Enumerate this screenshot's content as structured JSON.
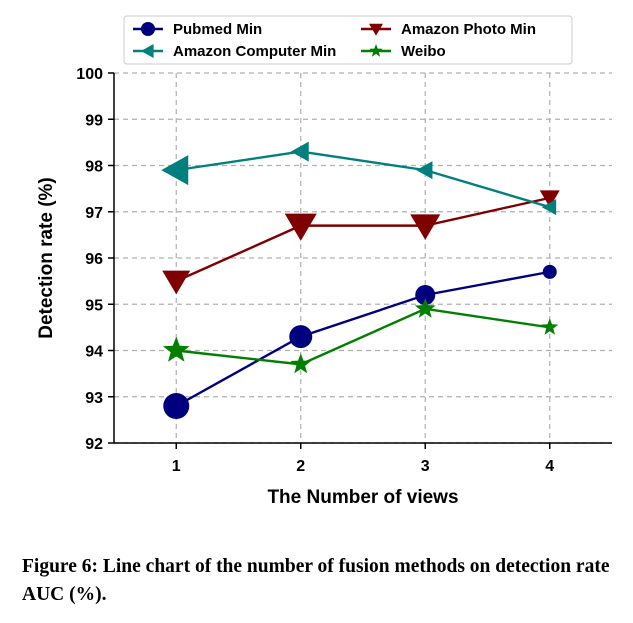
{
  "chart_data": {
    "type": "line",
    "xlabel": "The Number of views",
    "ylabel": "Detection rate (%)",
    "x": [
      1,
      2,
      3,
      4
    ],
    "xticks": [
      "1",
      "2",
      "3",
      "4"
    ],
    "yticks": [
      "92",
      "93",
      "94",
      "95",
      "96",
      "97",
      "98",
      "99",
      "100"
    ],
    "ylim": [
      92,
      100
    ],
    "xlim": [
      0.5,
      4.5
    ],
    "grid": true,
    "legend_position": "top",
    "series": [
      {
        "name": "Pubmed Min",
        "values": [
          92.8,
          94.3,
          95.2,
          95.7
        ],
        "color": "#00007f",
        "marker": "circle",
        "marker_sizes": [
          13,
          11.5,
          10,
          7
        ]
      },
      {
        "name": "Amazon Photo Min",
        "values": [
          95.5,
          96.7,
          96.7,
          97.3
        ],
        "color": "#7f0000",
        "marker": "triangle-down",
        "marker_sizes": [
          14,
          16,
          15,
          10
        ]
      },
      {
        "name": "Amazon Computer Min",
        "values": [
          97.9,
          98.3,
          97.9,
          97.1
        ],
        "color": "#007f7f",
        "marker": "triangle-left",
        "marker_sizes": [
          15,
          10,
          9,
          8
        ]
      },
      {
        "name": "Weibo",
        "values": [
          94.0,
          93.7,
          94.9,
          94.5
        ],
        "color": "#007f00",
        "marker": "star",
        "marker_sizes": [
          14,
          11,
          11,
          9
        ]
      }
    ]
  },
  "caption": "Figure 6: Line chart of the number of fusion methods on detection rate AUC (%)."
}
